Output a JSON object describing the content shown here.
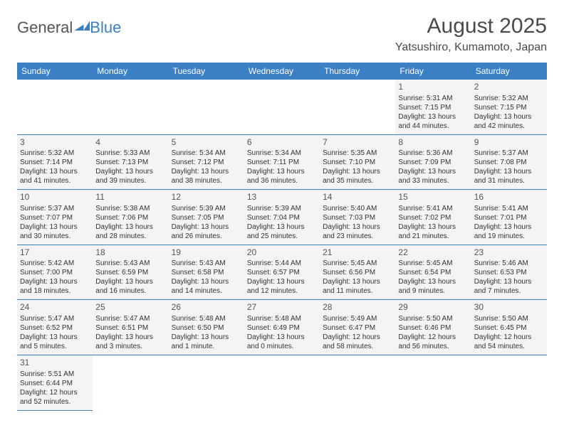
{
  "logo": {
    "part1": "General",
    "part2": "Blue"
  },
  "title": "August 2025",
  "location": "Yatsushiro, Kumamoto, Japan",
  "colors": {
    "header_bg": "#3b7fc4",
    "header_text": "#ffffff",
    "cell_bg": "#f4f4f4",
    "text": "#333333",
    "border": "#3b7fc4"
  },
  "dayHeaders": [
    "Sunday",
    "Monday",
    "Tuesday",
    "Wednesday",
    "Thursday",
    "Friday",
    "Saturday"
  ],
  "weeks": [
    [
      null,
      null,
      null,
      null,
      null,
      {
        "n": "1",
        "sr": "5:31 AM",
        "ss": "7:15 PM",
        "dl": "13 hours and 44 minutes."
      },
      {
        "n": "2",
        "sr": "5:32 AM",
        "ss": "7:15 PM",
        "dl": "13 hours and 42 minutes."
      }
    ],
    [
      {
        "n": "3",
        "sr": "5:32 AM",
        "ss": "7:14 PM",
        "dl": "13 hours and 41 minutes."
      },
      {
        "n": "4",
        "sr": "5:33 AM",
        "ss": "7:13 PM",
        "dl": "13 hours and 39 minutes."
      },
      {
        "n": "5",
        "sr": "5:34 AM",
        "ss": "7:12 PM",
        "dl": "13 hours and 38 minutes."
      },
      {
        "n": "6",
        "sr": "5:34 AM",
        "ss": "7:11 PM",
        "dl": "13 hours and 36 minutes."
      },
      {
        "n": "7",
        "sr": "5:35 AM",
        "ss": "7:10 PM",
        "dl": "13 hours and 35 minutes."
      },
      {
        "n": "8",
        "sr": "5:36 AM",
        "ss": "7:09 PM",
        "dl": "13 hours and 33 minutes."
      },
      {
        "n": "9",
        "sr": "5:37 AM",
        "ss": "7:08 PM",
        "dl": "13 hours and 31 minutes."
      }
    ],
    [
      {
        "n": "10",
        "sr": "5:37 AM",
        "ss": "7:07 PM",
        "dl": "13 hours and 30 minutes."
      },
      {
        "n": "11",
        "sr": "5:38 AM",
        "ss": "7:06 PM",
        "dl": "13 hours and 28 minutes."
      },
      {
        "n": "12",
        "sr": "5:39 AM",
        "ss": "7:05 PM",
        "dl": "13 hours and 26 minutes."
      },
      {
        "n": "13",
        "sr": "5:39 AM",
        "ss": "7:04 PM",
        "dl": "13 hours and 25 minutes."
      },
      {
        "n": "14",
        "sr": "5:40 AM",
        "ss": "7:03 PM",
        "dl": "13 hours and 23 minutes."
      },
      {
        "n": "15",
        "sr": "5:41 AM",
        "ss": "7:02 PM",
        "dl": "13 hours and 21 minutes."
      },
      {
        "n": "16",
        "sr": "5:41 AM",
        "ss": "7:01 PM",
        "dl": "13 hours and 19 minutes."
      }
    ],
    [
      {
        "n": "17",
        "sr": "5:42 AM",
        "ss": "7:00 PM",
        "dl": "13 hours and 18 minutes."
      },
      {
        "n": "18",
        "sr": "5:43 AM",
        "ss": "6:59 PM",
        "dl": "13 hours and 16 minutes."
      },
      {
        "n": "19",
        "sr": "5:43 AM",
        "ss": "6:58 PM",
        "dl": "13 hours and 14 minutes."
      },
      {
        "n": "20",
        "sr": "5:44 AM",
        "ss": "6:57 PM",
        "dl": "13 hours and 12 minutes."
      },
      {
        "n": "21",
        "sr": "5:45 AM",
        "ss": "6:56 PM",
        "dl": "13 hours and 11 minutes."
      },
      {
        "n": "22",
        "sr": "5:45 AM",
        "ss": "6:54 PM",
        "dl": "13 hours and 9 minutes."
      },
      {
        "n": "23",
        "sr": "5:46 AM",
        "ss": "6:53 PM",
        "dl": "13 hours and 7 minutes."
      }
    ],
    [
      {
        "n": "24",
        "sr": "5:47 AM",
        "ss": "6:52 PM",
        "dl": "13 hours and 5 minutes."
      },
      {
        "n": "25",
        "sr": "5:47 AM",
        "ss": "6:51 PM",
        "dl": "13 hours and 3 minutes."
      },
      {
        "n": "26",
        "sr": "5:48 AM",
        "ss": "6:50 PM",
        "dl": "13 hours and 1 minute."
      },
      {
        "n": "27",
        "sr": "5:48 AM",
        "ss": "6:49 PM",
        "dl": "13 hours and 0 minutes."
      },
      {
        "n": "28",
        "sr": "5:49 AM",
        "ss": "6:47 PM",
        "dl": "12 hours and 58 minutes."
      },
      {
        "n": "29",
        "sr": "5:50 AM",
        "ss": "6:46 PM",
        "dl": "12 hours and 56 minutes."
      },
      {
        "n": "30",
        "sr": "5:50 AM",
        "ss": "6:45 PM",
        "dl": "12 hours and 54 minutes."
      }
    ],
    [
      {
        "n": "31",
        "sr": "5:51 AM",
        "ss": "6:44 PM",
        "dl": "12 hours and 52 minutes."
      },
      null,
      null,
      null,
      null,
      null,
      null
    ]
  ],
  "labels": {
    "sunrise": "Sunrise:",
    "sunset": "Sunset:",
    "daylight": "Daylight:"
  }
}
